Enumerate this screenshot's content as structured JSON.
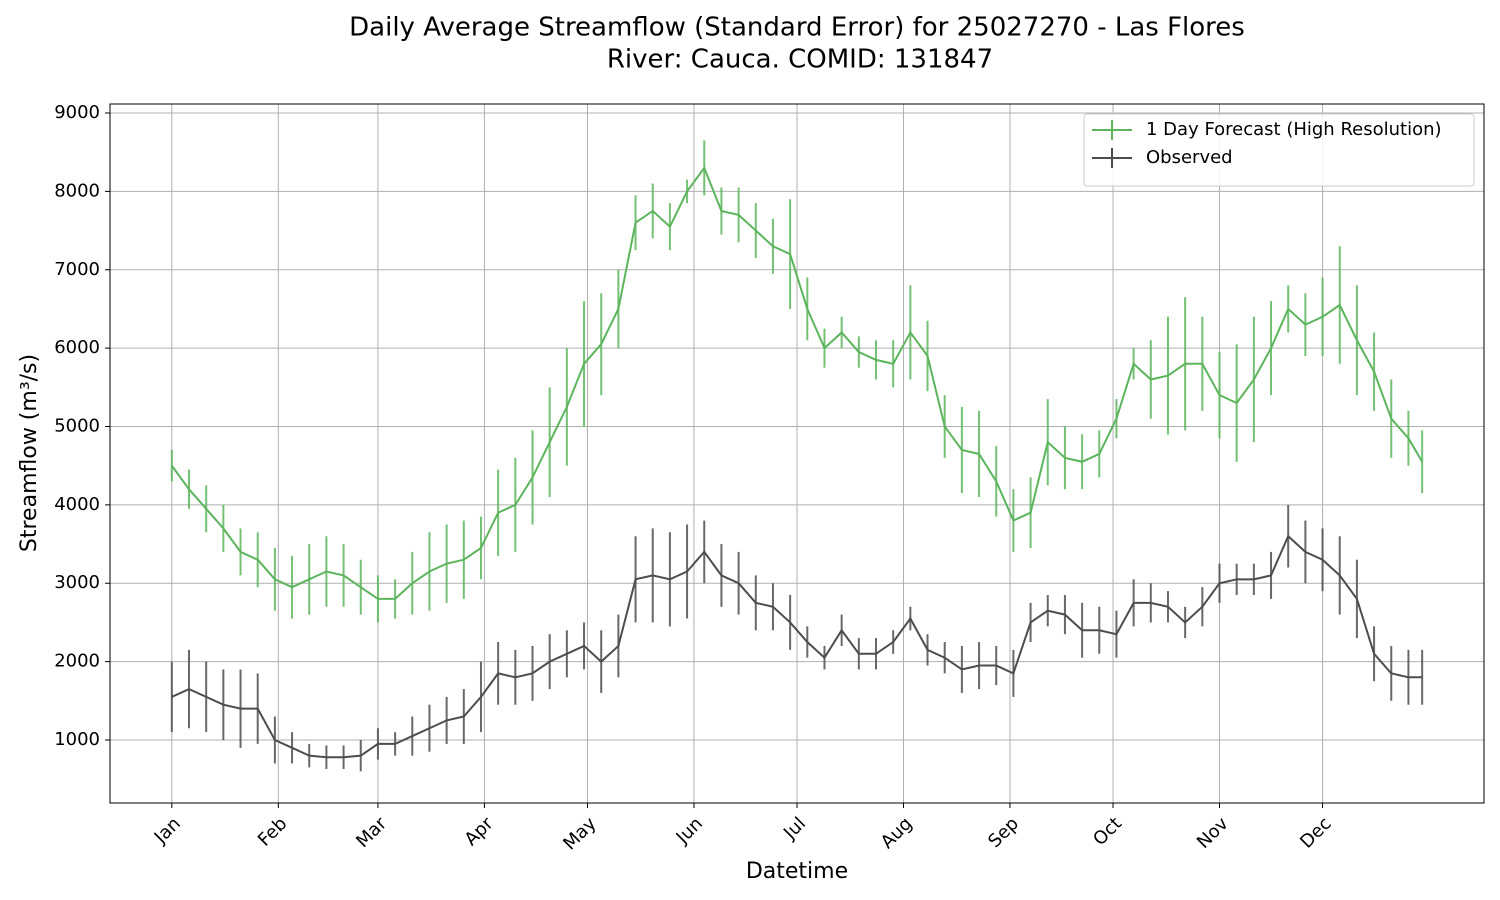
{
  "chart_data": {
    "type": "errorbar-line",
    "title": "Daily Average Streamflow (Standard Error) for 25027270 - Las Flores",
    "subtitle": "River: Cauca. COMID: 131847",
    "x_label": "Datetime",
    "y_label": "Streamflow (m³/s)",
    "x": [
      1,
      6,
      11,
      16,
      21,
      26,
      31,
      36,
      41,
      46,
      51,
      56,
      61,
      66,
      71,
      76,
      81,
      86,
      91,
      96,
      101,
      106,
      111,
      116,
      121,
      126,
      131,
      136,
      141,
      146,
      151,
      156,
      161,
      166,
      171,
      176,
      181,
      186,
      191,
      196,
      201,
      206,
      211,
      216,
      221,
      226,
      231,
      236,
      241,
      246,
      251,
      256,
      261,
      266,
      271,
      276,
      281,
      286,
      291,
      296,
      301,
      306,
      311,
      316,
      321,
      326,
      331,
      336,
      341,
      346,
      351,
      356,
      361,
      365
    ],
    "series": [
      {
        "name": "1 Day Forecast (High Resolution)",
        "color": "#5cb55c",
        "values": [
          4500,
          4200,
          3950,
          3700,
          3400,
          3300,
          3050,
          2950,
          3050,
          3150,
          3100,
          2950,
          2800,
          2800,
          3000,
          3150,
          3250,
          3300,
          3450,
          3900,
          4000,
          4350,
          4800,
          5250,
          5800,
          6050,
          6500,
          7600,
          7750,
          7550,
          8000,
          8300,
          7750,
          7700,
          7500,
          7300,
          7200,
          6500,
          6000,
          6200,
          5950,
          5850,
          5800,
          6200,
          5900,
          5000,
          4700,
          4650,
          4300,
          3800,
          3900,
          4800,
          4600,
          4550,
          4650,
          5100,
          5800,
          5600,
          5650,
          5800,
          5800,
          5400,
          5300,
          5600,
          6000,
          6500,
          6300,
          6400,
          6550,
          6100,
          5700,
          5100,
          4850,
          4550
        ],
        "errors": [
          200,
          250,
          300,
          300,
          300,
          350,
          400,
          400,
          450,
          450,
          400,
          350,
          300,
          250,
          400,
          500,
          500,
          500,
          400,
          550,
          600,
          600,
          700,
          750,
          800,
          650,
          500,
          350,
          350,
          300,
          150,
          350,
          300,
          350,
          350,
          350,
          700,
          400,
          250,
          200,
          200,
          250,
          300,
          600,
          450,
          400,
          550,
          550,
          450,
          400,
          450,
          550,
          400,
          350,
          300,
          250,
          200,
          500,
          750,
          850,
          600,
          550,
          750,
          800,
          600,
          300,
          400,
          500,
          750,
          700,
          500,
          500,
          350,
          400
        ]
      },
      {
        "name": "Observed",
        "color": "#4d4d4d",
        "values": [
          1550,
          1650,
          1550,
          1450,
          1400,
          1400,
          1000,
          900,
          800,
          780,
          780,
          800,
          950,
          950,
          1050,
          1150,
          1250,
          1300,
          1550,
          1850,
          1800,
          1850,
          2000,
          2100,
          2200,
          2000,
          2200,
          3050,
          3100,
          3050,
          3150,
          3400,
          3100,
          3000,
          2750,
          2700,
          2500,
          2250,
          2050,
          2400,
          2100,
          2100,
          2250,
          2550,
          2150,
          2050,
          1900,
          1950,
          1950,
          1850,
          2500,
          2650,
          2600,
          2400,
          2400,
          2350,
          2750,
          2750,
          2700,
          2500,
          2700,
          3000,
          3050,
          3050,
          3100,
          3600,
          3400,
          3300,
          3100,
          2800,
          2100,
          1850,
          1800,
          1800
        ],
        "errors": [
          450,
          500,
          450,
          450,
          500,
          450,
          300,
          200,
          150,
          150,
          150,
          200,
          200,
          150,
          250,
          300,
          300,
          350,
          450,
          400,
          350,
          350,
          350,
          300,
          300,
          400,
          400,
          550,
          600,
          600,
          600,
          400,
          400,
          400,
          350,
          300,
          350,
          200,
          150,
          200,
          200,
          200,
          150,
          150,
          200,
          200,
          300,
          300,
          250,
          300,
          250,
          200,
          250,
          350,
          300,
          300,
          300,
          250,
          200,
          200,
          250,
          250,
          200,
          200,
          300,
          400,
          400,
          400,
          500,
          500,
          350,
          350,
          350,
          350
        ]
      }
    ],
    "xlim": [
      -17,
      383
    ],
    "xticks": [
      {
        "value": 1,
        "label": "Jan"
      },
      {
        "value": 32,
        "label": "Feb"
      },
      {
        "value": 61,
        "label": "Mar"
      },
      {
        "value": 92,
        "label": "Apr"
      },
      {
        "value": 122,
        "label": "May"
      },
      {
        "value": 153,
        "label": "Jun"
      },
      {
        "value": 183,
        "label": "Jul"
      },
      {
        "value": 214,
        "label": "Aug"
      },
      {
        "value": 245,
        "label": "Sep"
      },
      {
        "value": 275,
        "label": "Oct"
      },
      {
        "value": 306,
        "label": "Nov"
      },
      {
        "value": 336,
        "label": "Dec"
      }
    ],
    "ylim": [
      196,
      9115
    ],
    "yticks": [
      1000,
      2000,
      3000,
      4000,
      5000,
      6000,
      7000,
      8000,
      9000
    ],
    "grid": true,
    "legend": "upper right"
  }
}
